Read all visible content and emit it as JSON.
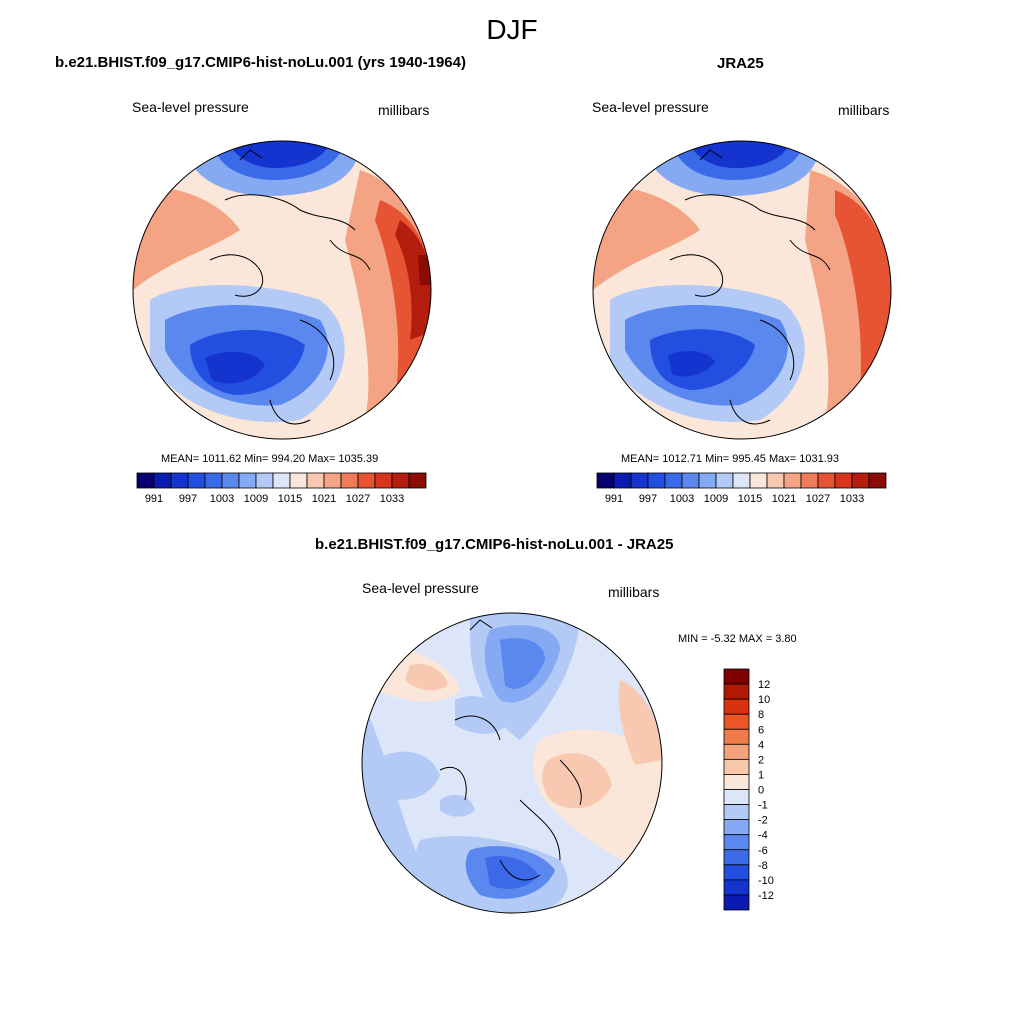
{
  "title": "DJF",
  "panels": [
    {
      "title": "b.e21.BHIST.f09_g17.CMIP6-hist-noLu.001 (yrs 1940-1964)",
      "left_label": "Sea-level pressure",
      "right_label": "millibars",
      "stats": "MEAN= 1011.62  Min= 994.20  Max= 1035.39"
    },
    {
      "title": "JRA25",
      "left_label": "Sea-level pressure",
      "right_label": "millibars",
      "stats": "MEAN= 1012.71  Min= 995.45  Max= 1031.93"
    },
    {
      "title": "b.e21.BHIST.f09_g17.CMIP6-hist-noLu.001 - JRA25",
      "left_label": "Sea-level pressure",
      "right_label": "millibars",
      "stats": "MIN =  -5.32 MAX =   3.80"
    }
  ],
  "colorbar_abs": {
    "tick_labels": [
      "991",
      "997",
      "1003",
      "1009",
      "1015",
      "1021",
      "1027",
      "1033"
    ],
    "colors": [
      "#08006e",
      "#0b1ab0",
      "#1433cf",
      "#234fe0",
      "#3a6ae8",
      "#5a88ee",
      "#85a9f2",
      "#b3c9f6",
      "#dde6f8",
      "#fbe7d9",
      "#f8c9b0",
      "#f4a484",
      "#ef7b58",
      "#e75433",
      "#d8351c",
      "#b51d0e",
      "#8a0c04"
    ]
  },
  "colorbar_diff": {
    "tick_labels": [
      "12",
      "10",
      "8",
      "6",
      "4",
      "2",
      "1",
      "0",
      "-1",
      "-2",
      "-4",
      "-6",
      "-8",
      "-10",
      "-12"
    ],
    "colors": [
      "#7f0000",
      "#b01a05",
      "#d8320f",
      "#ee5526",
      "#f07a4a",
      "#f4a27c",
      "#f8c8ad",
      "#fbe7d9",
      "#dde6f8",
      "#b3c9f6",
      "#85a9f2",
      "#5a88ee",
      "#3a6ae8",
      "#234fe0",
      "#1433cf",
      "#0b1ab0"
    ]
  },
  "map_colors": {
    "land_outline": "#000000",
    "deep_low": "#1433cf",
    "low": "#3a6ae8",
    "mid_low": "#85a9f2",
    "neutral_low": "#dde6f8",
    "neutral_high": "#fbe7d9",
    "mid_high": "#f4a484",
    "high": "#e75433",
    "deep_high": "#b51d0e"
  }
}
